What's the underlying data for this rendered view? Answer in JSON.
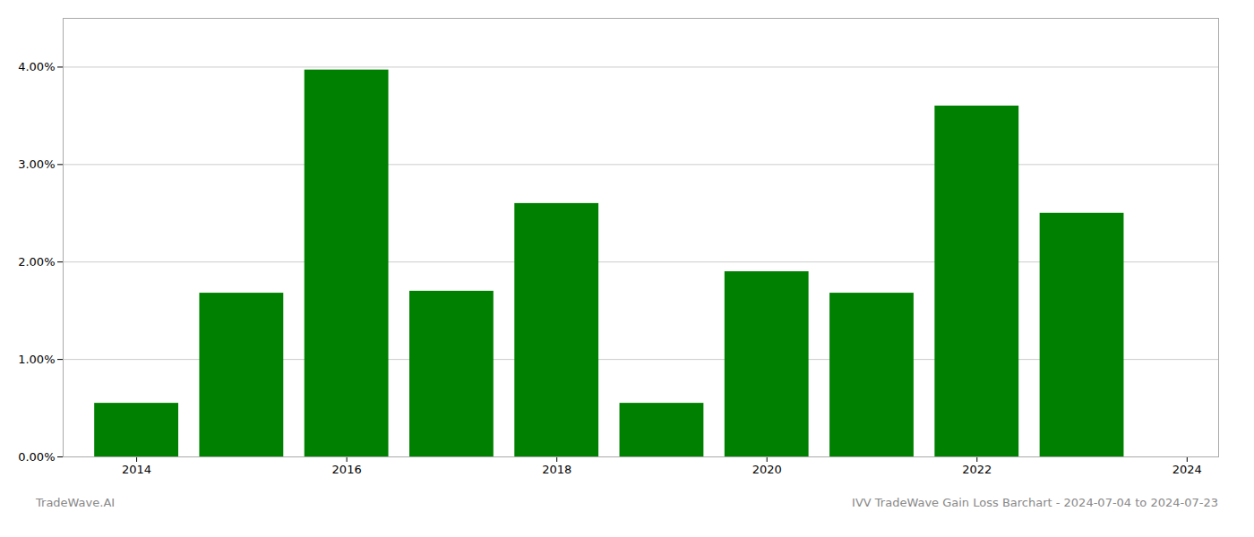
{
  "chart_data": {
    "type": "bar",
    "x": [
      2014,
      2015,
      2016,
      2017,
      2018,
      2019,
      2020,
      2021,
      2022,
      2023
    ],
    "values": [
      0.0055,
      0.0168,
      0.0397,
      0.017,
      0.026,
      0.0055,
      0.019,
      0.0168,
      0.036,
      0.025
    ],
    "color": "#008000",
    "xlim": [
      2013.3,
      2024.3
    ],
    "xticks": [
      2014,
      2016,
      2018,
      2020,
      2022,
      2024
    ],
    "ylim": [
      0,
      0.045
    ],
    "yticks": [
      {
        "value": 0.0,
        "label": "0.00%"
      },
      {
        "value": 0.01,
        "label": "1.00%"
      },
      {
        "value": 0.02,
        "label": "2.00%"
      },
      {
        "value": 0.03,
        "label": "3.00%"
      },
      {
        "value": 0.04,
        "label": "4.00%"
      }
    ],
    "grid": true,
    "annotations": [
      "TradeWave.AI",
      "IVV TradeWave Gain Loss Barchart - 2024-07-04 to 2024-07-23"
    ]
  }
}
